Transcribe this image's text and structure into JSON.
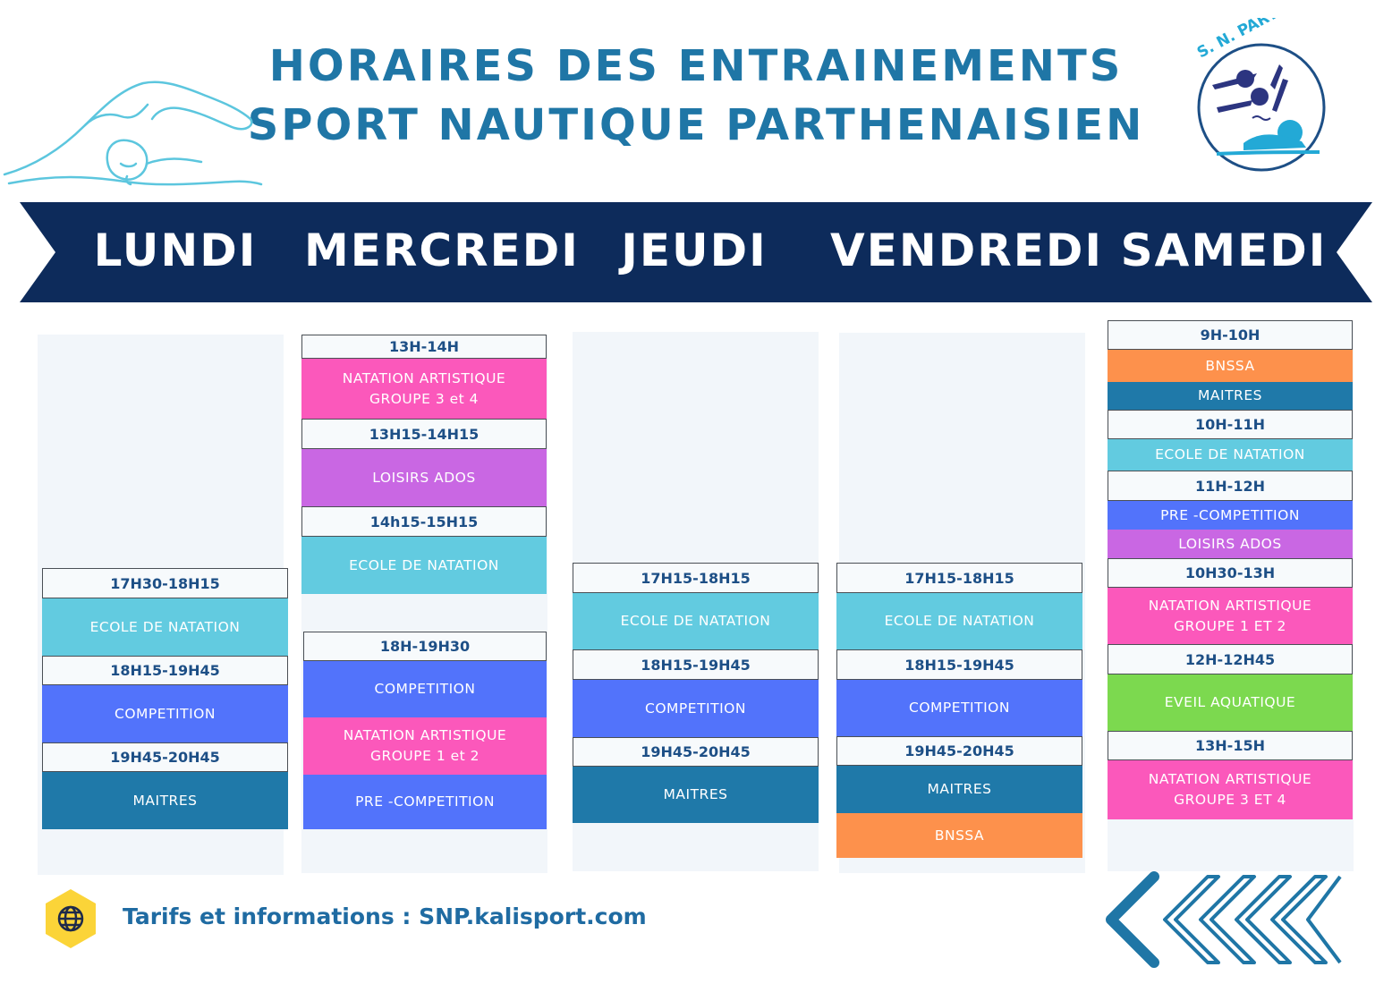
{
  "header": {
    "title_line1": "HORAIRES DES ENTRAINEMENTS",
    "title_line2": "SPORT NAUTIQUE PARTHENAISIEN",
    "logo_text": "S. N. PARTHENAY"
  },
  "days": [
    "LUNDI",
    "MERCREDI",
    "JEUDI",
    "VENDREDI",
    "SAMEDI"
  ],
  "colors": {
    "banner": "#0d2b5b",
    "title": "#1f76a6",
    "time_text": "#1d4f86",
    "cyan": "#62cbe0",
    "blue": "#5273fb",
    "teal": "#1f79a9",
    "pink": "#fb58bb",
    "purple": "#c967e3",
    "orange": "#fd914c",
    "green": "#7cd94f"
  },
  "schedule": {
    "lundi": {
      "t1": "17H30-18H15",
      "a1": "ECOLE DE NATATION",
      "t2": "18H15-19H45",
      "a2": "COMPETITION",
      "t3": "19H45-20H45",
      "a3": "MAITRES"
    },
    "mercredi": {
      "t1": "13H-14H",
      "a1_l1": "NATATION ARTISTIQUE",
      "a1_l2": "GROUPE  3 et 4",
      "t2": "13H15-14H15",
      "a2": "LOISIRS ADOS",
      "t3": "14h15-15H15",
      "a3": "ECOLE DE NATATION",
      "t4": "18H-19H30",
      "a4": "COMPETITION",
      "a5_l1": "NATATION ARTISTIQUE",
      "a5_l2": "GROUPE 1 et 2",
      "a6": "PRE -COMPETITION"
    },
    "jeudi": {
      "t1": "17H15-18H15",
      "a1": "ECOLE DE NATATION",
      "t2": "18H15-19H45",
      "a2": "COMPETITION",
      "t3": "19H45-20H45",
      "a3": "MAITRES"
    },
    "vendredi": {
      "t1": "17H15-18H15",
      "a1": "ECOLE DE NATATION",
      "t2": "18H15-19H45",
      "a2": "COMPETITION",
      "t3": "19H45-20H45",
      "a3": "MAITRES",
      "a4": "BNSSA"
    },
    "samedi": {
      "t1": "9H-10H",
      "a1": "BNSSA",
      "a2": "MAITRES",
      "t2": "10H-11H",
      "a3": "ECOLE DE NATATION",
      "t3": "11H-12H",
      "a4": "PRE -COMPETITION",
      "a5": "LOISIRS ADOS",
      "t4": "10H30-13H",
      "a6_l1": "NATATION ARTISTIQUE",
      "a6_l2": "GROUPE 1 ET 2",
      "t5": "12H-12H45",
      "a7": "EVEIL AQUATIQUE",
      "t6": "13H-15H",
      "a8_l1": "NATATION ARTISTIQUE",
      "a8_l2": "GROUPE 3 ET 4"
    }
  },
  "footer": {
    "info": "Tarifs et informations :  SNP.kalisport.com",
    "icon": "globe-icon"
  }
}
